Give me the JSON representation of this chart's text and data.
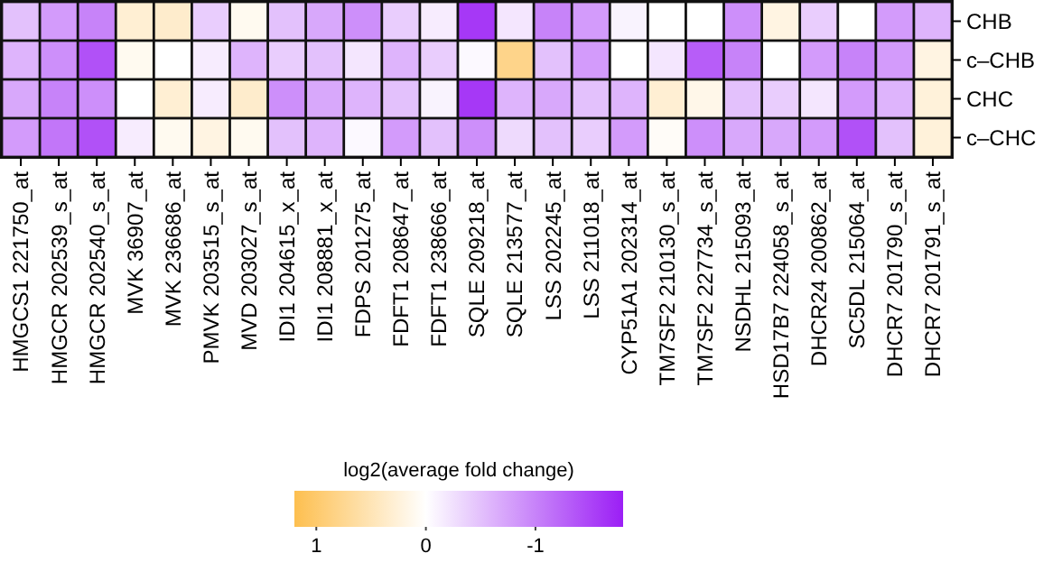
{
  "chart_data": {
    "type": "heatmap",
    "clabel": "log2(average fold change)",
    "categories": [
      "HMGCS1 221750_at",
      "HMGCR 202539_s_at",
      "HMGCR 202540_s_at",
      "MVK 36907_at",
      "MVK 236686_at",
      "PMVK 203515_s_at",
      "MVD 203027_s_at",
      "IDI1 204615_x_at",
      "IDI1 208881_x_at",
      "FDPS 201275_at",
      "FDFT1 208647_at",
      "FDFT1 238666_at",
      "SQLE 209218_at",
      "SQLE 213577_at",
      "LSS 202245_at",
      "LSS 211018_at",
      "CYP51A1 202314_at",
      "TM7SF2 210130_s_at",
      "TM7SF2 227734_s_at",
      "NSDHL 215093_at",
      "HSD17B7 224058_s_at",
      "DHCR24 200862_at",
      "SC5DL 215064_at",
      "DHCR7 201790_s_at",
      "DHCR7 201791_s_at"
    ],
    "y_categories": [
      "CHB",
      "c–CHB",
      "CHC",
      "c–CHC"
    ],
    "cells": [
      [
        -0.5,
        -0.8,
        -1.0,
        0.3,
        0.35,
        -0.4,
        0.1,
        -0.5,
        -0.7,
        -0.9,
        -0.4,
        -0.15,
        -1.6,
        -0.2,
        -1.0,
        -0.8,
        -0.1,
        0,
        0,
        -0.9,
        0.2,
        -0.4,
        0,
        -0.8,
        -0.6
      ],
      [
        -0.6,
        -0.9,
        -1.4,
        0.1,
        0,
        -0.15,
        -0.6,
        -0.4,
        -0.5,
        -0.2,
        -0.6,
        -0.4,
        -0.05,
        0.8,
        -0.5,
        -0.8,
        0,
        -0.2,
        -1.3,
        -1.0,
        0,
        -0.8,
        -1.0,
        -0.8,
        0.2
      ],
      [
        -0.7,
        -1.0,
        -0.9,
        0,
        0.3,
        -0.15,
        0.35,
        -0.9,
        -0.7,
        -0.6,
        -0.5,
        -0.1,
        -1.6,
        -0.6,
        -0.7,
        -0.5,
        -0.6,
        0.3,
        0.15,
        -0.5,
        -0.4,
        -0.2,
        -0.8,
        -0.6,
        0.25
      ],
      [
        -0.8,
        -1.1,
        -1.4,
        -0.15,
        0.1,
        0.2,
        0.1,
        -0.5,
        -0.6,
        -0.05,
        -0.8,
        -0.5,
        -0.9,
        -0.3,
        -0.5,
        -0.4,
        -0.8,
        0.05,
        -0.9,
        -0.7,
        -0.7,
        -0.8,
        -1.4,
        -0.5,
        0.25
      ]
    ],
    "clim": [
      1.2,
      -1.8
    ],
    "cticks": [
      1,
      0,
      -1
    ]
  }
}
